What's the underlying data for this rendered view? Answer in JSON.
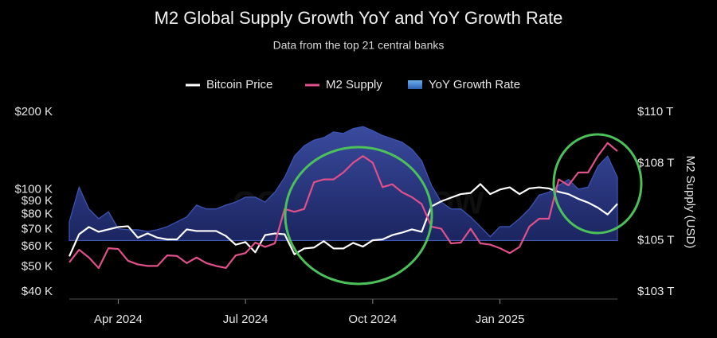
{
  "chart_data": {
    "type": "line",
    "title": "M2 Global Supply Growth YoY and YoY Growth Rate",
    "subtitle": "Data from the top 21 central banks",
    "y2_label": "M2 Supply (USD)",
    "watermark": "COUNTERFLOW",
    "categories": [
      null,
      null,
      null,
      null,
      null,
      "Apr 2024",
      null,
      null,
      null,
      null,
      null,
      null,
      null,
      null,
      null,
      null,
      null,
      null,
      "Jul 2024",
      null,
      null,
      null,
      null,
      null,
      null,
      null,
      null,
      null,
      null,
      null,
      null,
      "Oct 2024",
      null,
      null,
      null,
      null,
      null,
      null,
      null,
      null,
      null,
      null,
      null,
      null,
      "Jan 2025",
      null,
      null,
      null,
      null,
      null,
      null,
      null,
      null,
      null,
      null,
      null,
      null
    ],
    "log_y": true,
    "ylim": [
      40000,
      200000
    ],
    "yticks": [
      {
        "value": 40000,
        "label": "$40 K"
      },
      {
        "value": 50000,
        "label": "$50 K"
      },
      {
        "value": 60000,
        "label": "$60 K"
      },
      {
        "value": 70000,
        "label": "$70 K"
      },
      {
        "value": 80000,
        "label": "$80 K"
      },
      {
        "value": 90000,
        "label": "$90 K"
      },
      {
        "value": 100000,
        "label": "$100 K"
      },
      {
        "value": 200000,
        "label": "$200 K"
      }
    ],
    "y2lim": [
      103,
      110
    ],
    "y2ticks": [
      {
        "value": 103,
        "label": "$103 T"
      },
      {
        "value": 105,
        "label": "$105 T"
      },
      {
        "value": 108,
        "label": "$108 T"
      },
      {
        "value": 110,
        "label": "$110 T"
      }
    ],
    "series": [
      {
        "name": "Bitcoin Price",
        "color": "#ffffff",
        "kind": "line",
        "values": [
          55000,
          67000,
          71500,
          68500,
          70000,
          71500,
          72000,
          65000,
          67500,
          65000,
          64000,
          64000,
          70000,
          69000,
          69000,
          69000,
          66000,
          61000,
          62500,
          57000,
          66500,
          67500,
          67000,
          56000,
          59000,
          59500,
          63000,
          59000,
          59000,
          62000,
          60000,
          63500,
          64000,
          66500,
          68000,
          70000,
          68500,
          86000,
          90000,
          93000,
          96000,
          97000,
          105000,
          96000,
          100000,
          102000,
          96000,
          101000,
          102000,
          101000,
          98000,
          96000,
          92000,
          89000,
          85000,
          80000,
          88000
        ]
      },
      {
        "name": "M2 Supply",
        "color": "#e0508a",
        "kind": "line",
        "axis": "y2",
        "values": [
          104.15,
          104.64,
          104.34,
          103.93,
          104.7,
          104.67,
          104.21,
          104.07,
          104.01,
          104.01,
          104.42,
          104.4,
          104.12,
          104.34,
          104.12,
          104.01,
          103.93,
          104.42,
          104.51,
          104.92,
          104.75,
          104.89,
          106.23,
          106.12,
          106.23,
          107.27,
          107.38,
          107.38,
          107.65,
          108.03,
          108.29,
          108.03,
          107.08,
          107.19,
          106.88,
          106.69,
          106.42,
          105.54,
          105.46,
          104.89,
          104.92,
          105.46,
          104.89,
          104.84,
          104.7,
          104.51,
          104.75,
          105.54,
          105.85,
          105.85,
          107.38,
          107.15,
          107.65,
          107.65,
          108.29,
          108.8,
          108.48
        ]
      },
      {
        "name": "YoY Growth Rate",
        "color": "#3f57b8",
        "kind": "area",
        "axis": "y2",
        "values": [
          105.73,
          107.08,
          106.23,
          105.85,
          106.12,
          105.46,
          105.42,
          105.42,
          105.35,
          105.42,
          105.54,
          105.73,
          105.92,
          106.38,
          106.23,
          106.23,
          106.38,
          106.5,
          106.69,
          106.69,
          106.5,
          106.88,
          107.46,
          108.29,
          108.69,
          108.91,
          109.01,
          109.23,
          109.17,
          109.36,
          109.44,
          109.28,
          109.09,
          108.96,
          108.83,
          108.56,
          108.11,
          107.15,
          106.5,
          106.23,
          106.23,
          105.92,
          105.54,
          105.15,
          105.54,
          105.54,
          105.85,
          106.23,
          106.77,
          106.88,
          107.15,
          107.38,
          107.0,
          107.08,
          107.89,
          108.29,
          107.46
        ]
      }
    ]
  }
}
